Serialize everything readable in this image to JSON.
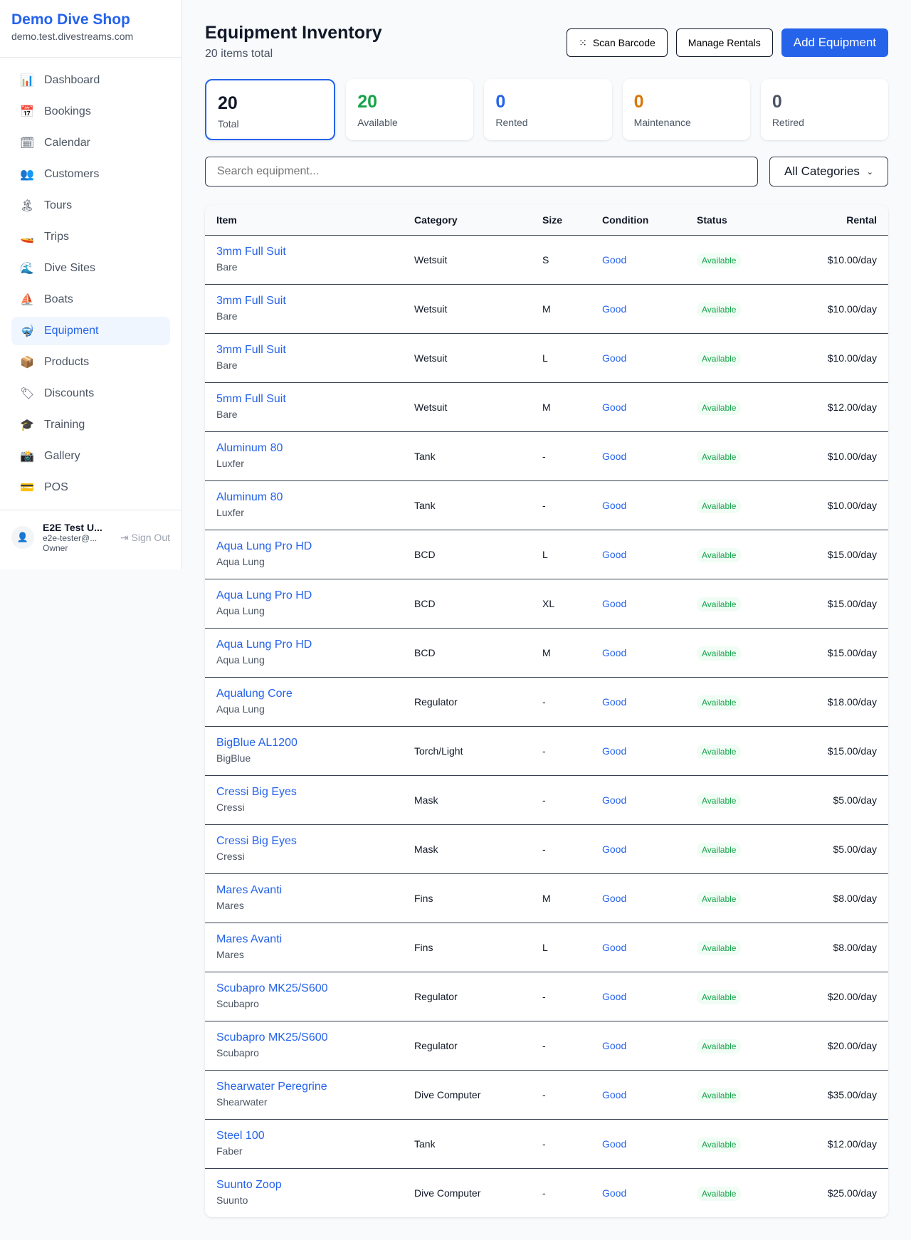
{
  "sidebar": {
    "brand": "Demo Dive Shop",
    "domain": "demo.test.divestreams.com",
    "items": [
      {
        "label": "Dashboard",
        "icon": "📊"
      },
      {
        "label": "Bookings",
        "icon": "📅"
      },
      {
        "label": "Calendar",
        "icon": "🗓"
      },
      {
        "label": "Customers",
        "icon": "👥"
      },
      {
        "label": "Tours",
        "icon": "🏝"
      },
      {
        "label": "Trips",
        "icon": "🚤"
      },
      {
        "label": "Dive Sites",
        "icon": "🌊"
      },
      {
        "label": "Boats",
        "icon": "⛵"
      },
      {
        "label": "Equipment",
        "icon": "🤿"
      },
      {
        "label": "Products",
        "icon": "📦"
      },
      {
        "label": "Discounts",
        "icon": "🏷"
      },
      {
        "label": "Training",
        "icon": "🎓"
      },
      {
        "label": "Gallery",
        "icon": "📸"
      },
      {
        "label": "POS",
        "icon": "💳"
      }
    ],
    "active": "Equipment",
    "user": {
      "name": "E2E Test U...",
      "email": "e2e-tester@...",
      "role": "Owner",
      "sign_out": "Sign Out"
    }
  },
  "header": {
    "title": "Equipment Inventory",
    "subtitle": "20 items total",
    "scan": "Scan Barcode",
    "manage": "Manage Rentals",
    "add": "Add Equipment"
  },
  "stats": [
    {
      "value": "20",
      "label": "Total",
      "color": "#111827"
    },
    {
      "value": "20",
      "label": "Available",
      "color": "#16a34a"
    },
    {
      "value": "0",
      "label": "Rented",
      "color": "#2563eb"
    },
    {
      "value": "0",
      "label": "Maintenance",
      "color": "#d97706"
    },
    {
      "value": "0",
      "label": "Retired",
      "color": "#4b5563"
    }
  ],
  "search": {
    "placeholder": "Search equipment...",
    "category": "All Categories"
  },
  "table": {
    "headers": {
      "item": "Item",
      "category": "Category",
      "size": "Size",
      "condition": "Condition",
      "status": "Status",
      "rental": "Rental"
    },
    "rows": [
      [
        "3mm Full Suit",
        "Bare",
        "Wetsuit",
        "S",
        "Good",
        "Available",
        "$10.00/day"
      ],
      [
        "3mm Full Suit",
        "Bare",
        "Wetsuit",
        "M",
        "Good",
        "Available",
        "$10.00/day"
      ],
      [
        "3mm Full Suit",
        "Bare",
        "Wetsuit",
        "L",
        "Good",
        "Available",
        "$10.00/day"
      ],
      [
        "5mm Full Suit",
        "Bare",
        "Wetsuit",
        "M",
        "Good",
        "Available",
        "$12.00/day"
      ],
      [
        "Aluminum 80",
        "Luxfer",
        "Tank",
        "-",
        "Good",
        "Available",
        "$10.00/day"
      ],
      [
        "Aluminum 80",
        "Luxfer",
        "Tank",
        "-",
        "Good",
        "Available",
        "$10.00/day"
      ],
      [
        "Aqua Lung Pro HD",
        "Aqua Lung",
        "BCD",
        "L",
        "Good",
        "Available",
        "$15.00/day"
      ],
      [
        "Aqua Lung Pro HD",
        "Aqua Lung",
        "BCD",
        "XL",
        "Good",
        "Available",
        "$15.00/day"
      ],
      [
        "Aqua Lung Pro HD",
        "Aqua Lung",
        "BCD",
        "M",
        "Good",
        "Available",
        "$15.00/day"
      ],
      [
        "Aqualung Core",
        "Aqua Lung",
        "Regulator",
        "-",
        "Good",
        "Available",
        "$18.00/day"
      ],
      [
        "BigBlue AL1200",
        "BigBlue",
        "Torch/Light",
        "-",
        "Good",
        "Available",
        "$15.00/day"
      ],
      [
        "Cressi Big Eyes",
        "Cressi",
        "Mask",
        "-",
        "Good",
        "Available",
        "$5.00/day"
      ],
      [
        "Cressi Big Eyes",
        "Cressi",
        "Mask",
        "-",
        "Good",
        "Available",
        "$5.00/day"
      ],
      [
        "Mares Avanti",
        "Mares",
        "Fins",
        "M",
        "Good",
        "Available",
        "$8.00/day"
      ],
      [
        "Mares Avanti",
        "Mares",
        "Fins",
        "L",
        "Good",
        "Available",
        "$8.00/day"
      ],
      [
        "Scubapro MK25/S600",
        "Scubapro",
        "Regulator",
        "-",
        "Good",
        "Available",
        "$20.00/day"
      ],
      [
        "Scubapro MK25/S600",
        "Scubapro",
        "Regulator",
        "-",
        "Good",
        "Available",
        "$20.00/day"
      ],
      [
        "Shearwater Peregrine",
        "Shearwater",
        "Dive Computer",
        "-",
        "Good",
        "Available",
        "$35.00/day"
      ],
      [
        "Steel 100",
        "Faber",
        "Tank",
        "-",
        "Good",
        "Available",
        "$12.00/day"
      ],
      [
        "Suunto Zoop",
        "Suunto",
        "Dive Computer",
        "-",
        "Good",
        "Available",
        "$25.00/day"
      ]
    ]
  }
}
